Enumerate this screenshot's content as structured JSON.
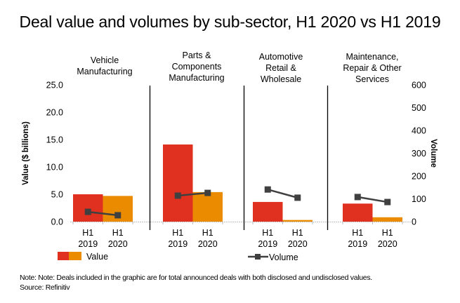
{
  "title": "Deal value and volumes by sub-sector, H1 2020 vs H1 2019",
  "note": "Note: Note: Deals included in the graphic are for total announced deals with both disclosed and undisclosed values.",
  "source": "Source: Refinitiv",
  "colors": {
    "h1_2019": "#E03120",
    "h1_2020": "#EB8C00",
    "volume": "#404040",
    "divider": "#000000",
    "baseline": "#BFBFBF"
  },
  "chart_data": {
    "type": "bar",
    "title": "Deal value and volumes by sub-sector, H1 2020 vs H1 2019",
    "ylabel": "Value ($ billions)",
    "y2label": "Volume",
    "ylim": [
      0,
      25
    ],
    "y2lim": [
      0,
      600
    ],
    "yticks": [
      "0.0",
      "5.0",
      "10.0",
      "15.0",
      "20.0",
      "25.0"
    ],
    "y2ticks": [
      "0",
      "100",
      "200",
      "300",
      "400",
      "500",
      "600"
    ],
    "grid": false,
    "periods": [
      {
        "line1": "H1",
        "line2": "2019"
      },
      {
        "line1": "H1",
        "line2": "2020"
      }
    ],
    "panels": [
      {
        "title_lines": [
          "Vehicle",
          "Manufacturing"
        ],
        "value": [
          5.0,
          4.7
        ],
        "volume": [
          43,
          28
        ]
      },
      {
        "title_lines": [
          "Parts &",
          "Components",
          "Manufacturing"
        ],
        "value": [
          14.1,
          5.4
        ],
        "volume": [
          114,
          126
        ]
      },
      {
        "title_lines": [
          "Automotive",
          "Retail &",
          "Wholesale"
        ],
        "value": [
          3.6,
          0.3
        ],
        "volume": [
          141,
          105
        ]
      },
      {
        "title_lines": [
          "Maintenance,",
          "Repair & Other",
          "Services"
        ],
        "value": [
          3.3,
          0.8
        ],
        "volume": [
          108,
          86
        ]
      }
    ],
    "legend": {
      "position": "bottom",
      "value_label": "Value",
      "volume_label": "Volume"
    }
  }
}
